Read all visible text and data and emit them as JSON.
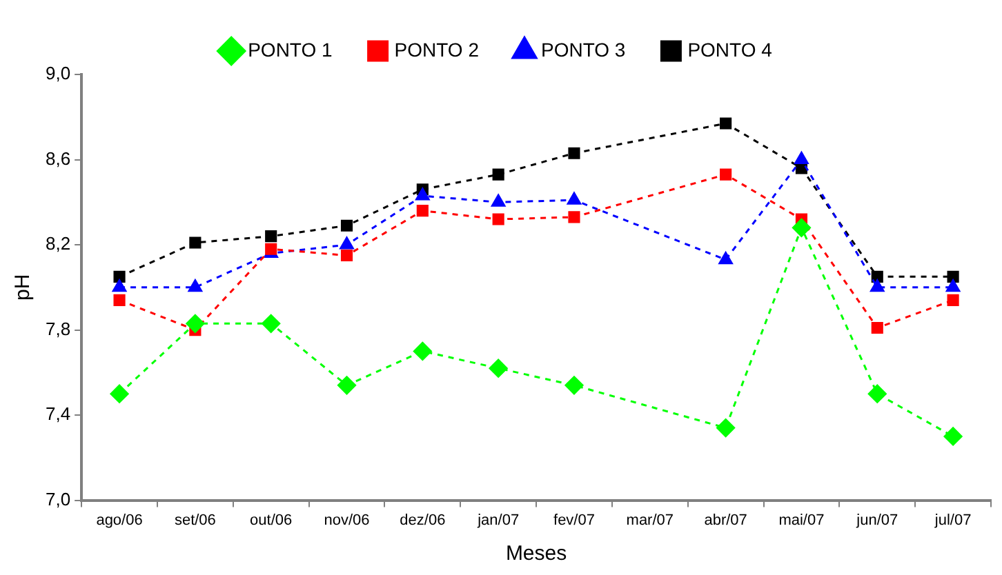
{
  "chart_data": {
    "type": "line",
    "xlabel": "Meses",
    "ylabel": "pH",
    "categories": [
      "ago/06",
      "set/06",
      "out/06",
      "nov/06",
      "dez/06",
      "jan/07",
      "fev/07",
      "mar/07",
      "abr/07",
      "mai/07",
      "jun/07",
      "jul/07"
    ],
    "series": [
      {
        "name": "PONTO 1",
        "color": "#00ff00",
        "marker": "diamond",
        "values": [
          7.5,
          7.83,
          7.83,
          7.54,
          7.7,
          7.62,
          7.54,
          null,
          7.34,
          8.28,
          7.5,
          7.3
        ]
      },
      {
        "name": "PONTO 2",
        "color": "#ff0000",
        "marker": "square",
        "values": [
          7.94,
          7.8,
          8.18,
          8.15,
          8.36,
          8.32,
          8.33,
          null,
          8.53,
          8.32,
          7.81,
          7.94
        ]
      },
      {
        "name": "PONTO 3",
        "color": "#0000ff",
        "marker": "triangle",
        "values": [
          8.0,
          8.0,
          8.16,
          8.2,
          8.43,
          8.4,
          8.41,
          null,
          8.13,
          8.6,
          8.0,
          8.0
        ]
      },
      {
        "name": "PONTO 4",
        "color": "#000000",
        "marker": "square",
        "values": [
          8.05,
          8.21,
          8.24,
          8.29,
          8.46,
          8.53,
          8.63,
          null,
          8.77,
          8.56,
          8.05,
          8.05
        ]
      }
    ],
    "ylim": [
      7.0,
      9.0
    ],
    "yticks": [
      {
        "value": 7.0,
        "label": "7,0"
      },
      {
        "value": 7.4,
        "label": "7,4"
      },
      {
        "value": 7.8,
        "label": "7,8"
      },
      {
        "value": 8.2,
        "label": "8,2"
      },
      {
        "value": 8.6,
        "label": "8,6"
      },
      {
        "value": 9.0,
        "label": "9,0"
      }
    ],
    "grid": false,
    "legend": "top",
    "line_style": "dashed"
  }
}
